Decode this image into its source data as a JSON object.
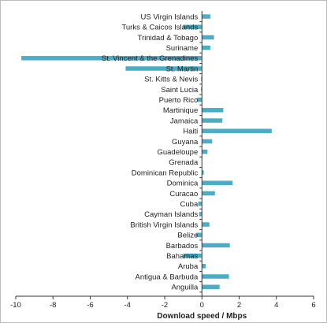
{
  "chart_data": {
    "type": "bar",
    "orientation": "horizontal",
    "categories": [
      "US Virgin Islands",
      "Turks & Caicos Islands",
      "Trinidad & Tobago",
      "Suriname",
      "St. Vincent & the Grenadines",
      "St. Martin",
      "St. Kitts & Nevis",
      "Saint Lucia",
      "Puerto Rico",
      "Martinique",
      "Jamaica",
      "Haiti",
      "Guyana",
      "Guadeloupe",
      "Grenada",
      "Dominican Republic",
      "Dominica",
      "Curacao",
      "Cuba",
      "Cayman Islands",
      "British Virgin Islands",
      "Belize",
      "Barbados",
      "Bahamas",
      "Aruba",
      "Antigua & Barbuda",
      "Anguilla"
    ],
    "values": [
      0.45,
      -1.0,
      0.65,
      0.45,
      -9.7,
      -4.1,
      -0.05,
      -0.05,
      -0.25,
      1.15,
      1.1,
      3.75,
      0.55,
      0.3,
      0.0,
      0.1,
      1.65,
      0.7,
      -0.2,
      -0.15,
      0.4,
      -0.3,
      1.5,
      -1.0,
      0.2,
      1.45,
      0.95
    ],
    "xlabel": "Download speed / Mbps",
    "ylabel": "",
    "xlim": [
      -10,
      6
    ],
    "xticks": [
      -10,
      -8,
      -6,
      -4,
      -2,
      0,
      2,
      4,
      6
    ],
    "grid": false,
    "bar_color": "#4bacc6"
  }
}
